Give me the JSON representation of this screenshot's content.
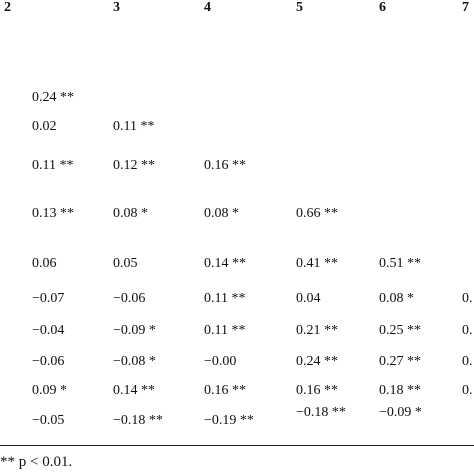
{
  "table": {
    "columns": [
      "2",
      "3",
      "4",
      "5",
      "6",
      "7"
    ],
    "rows": [
      [
        "0.24 **"
      ],
      [
        "0.02",
        "0.11 **"
      ],
      [
        "0.11 **",
        "0.12 **",
        "0.16 **"
      ],
      [
        "0.13 **",
        "0.08 *",
        "0.08 *",
        "0.66 **"
      ],
      [
        "0.06",
        "0.05",
        "0.14 **",
        "0.41 **",
        "0.51 **"
      ],
      [
        "−0.07",
        "−0.06",
        "0.11 **",
        "0.04",
        "0.08 *",
        "0."
      ],
      [
        "−0.04",
        "−0.09 *",
        "0.11 **",
        "0.21 **",
        "0.25 **",
        "0."
      ],
      [
        "−0.06",
        "−0.08 *",
        "−0.00",
        "0.24 **",
        "0.27 **",
        "0."
      ],
      [
        "0.09 *",
        "0.14 **",
        "0.16 **",
        "0.16 **",
        "0.18 **",
        "0."
      ],
      [
        "−0.05",
        "−0.18 **",
        "−0.19 **",
        "−0.18 **",
        "−0.09 *"
      ]
    ],
    "footnote": "** p < 0.01."
  }
}
